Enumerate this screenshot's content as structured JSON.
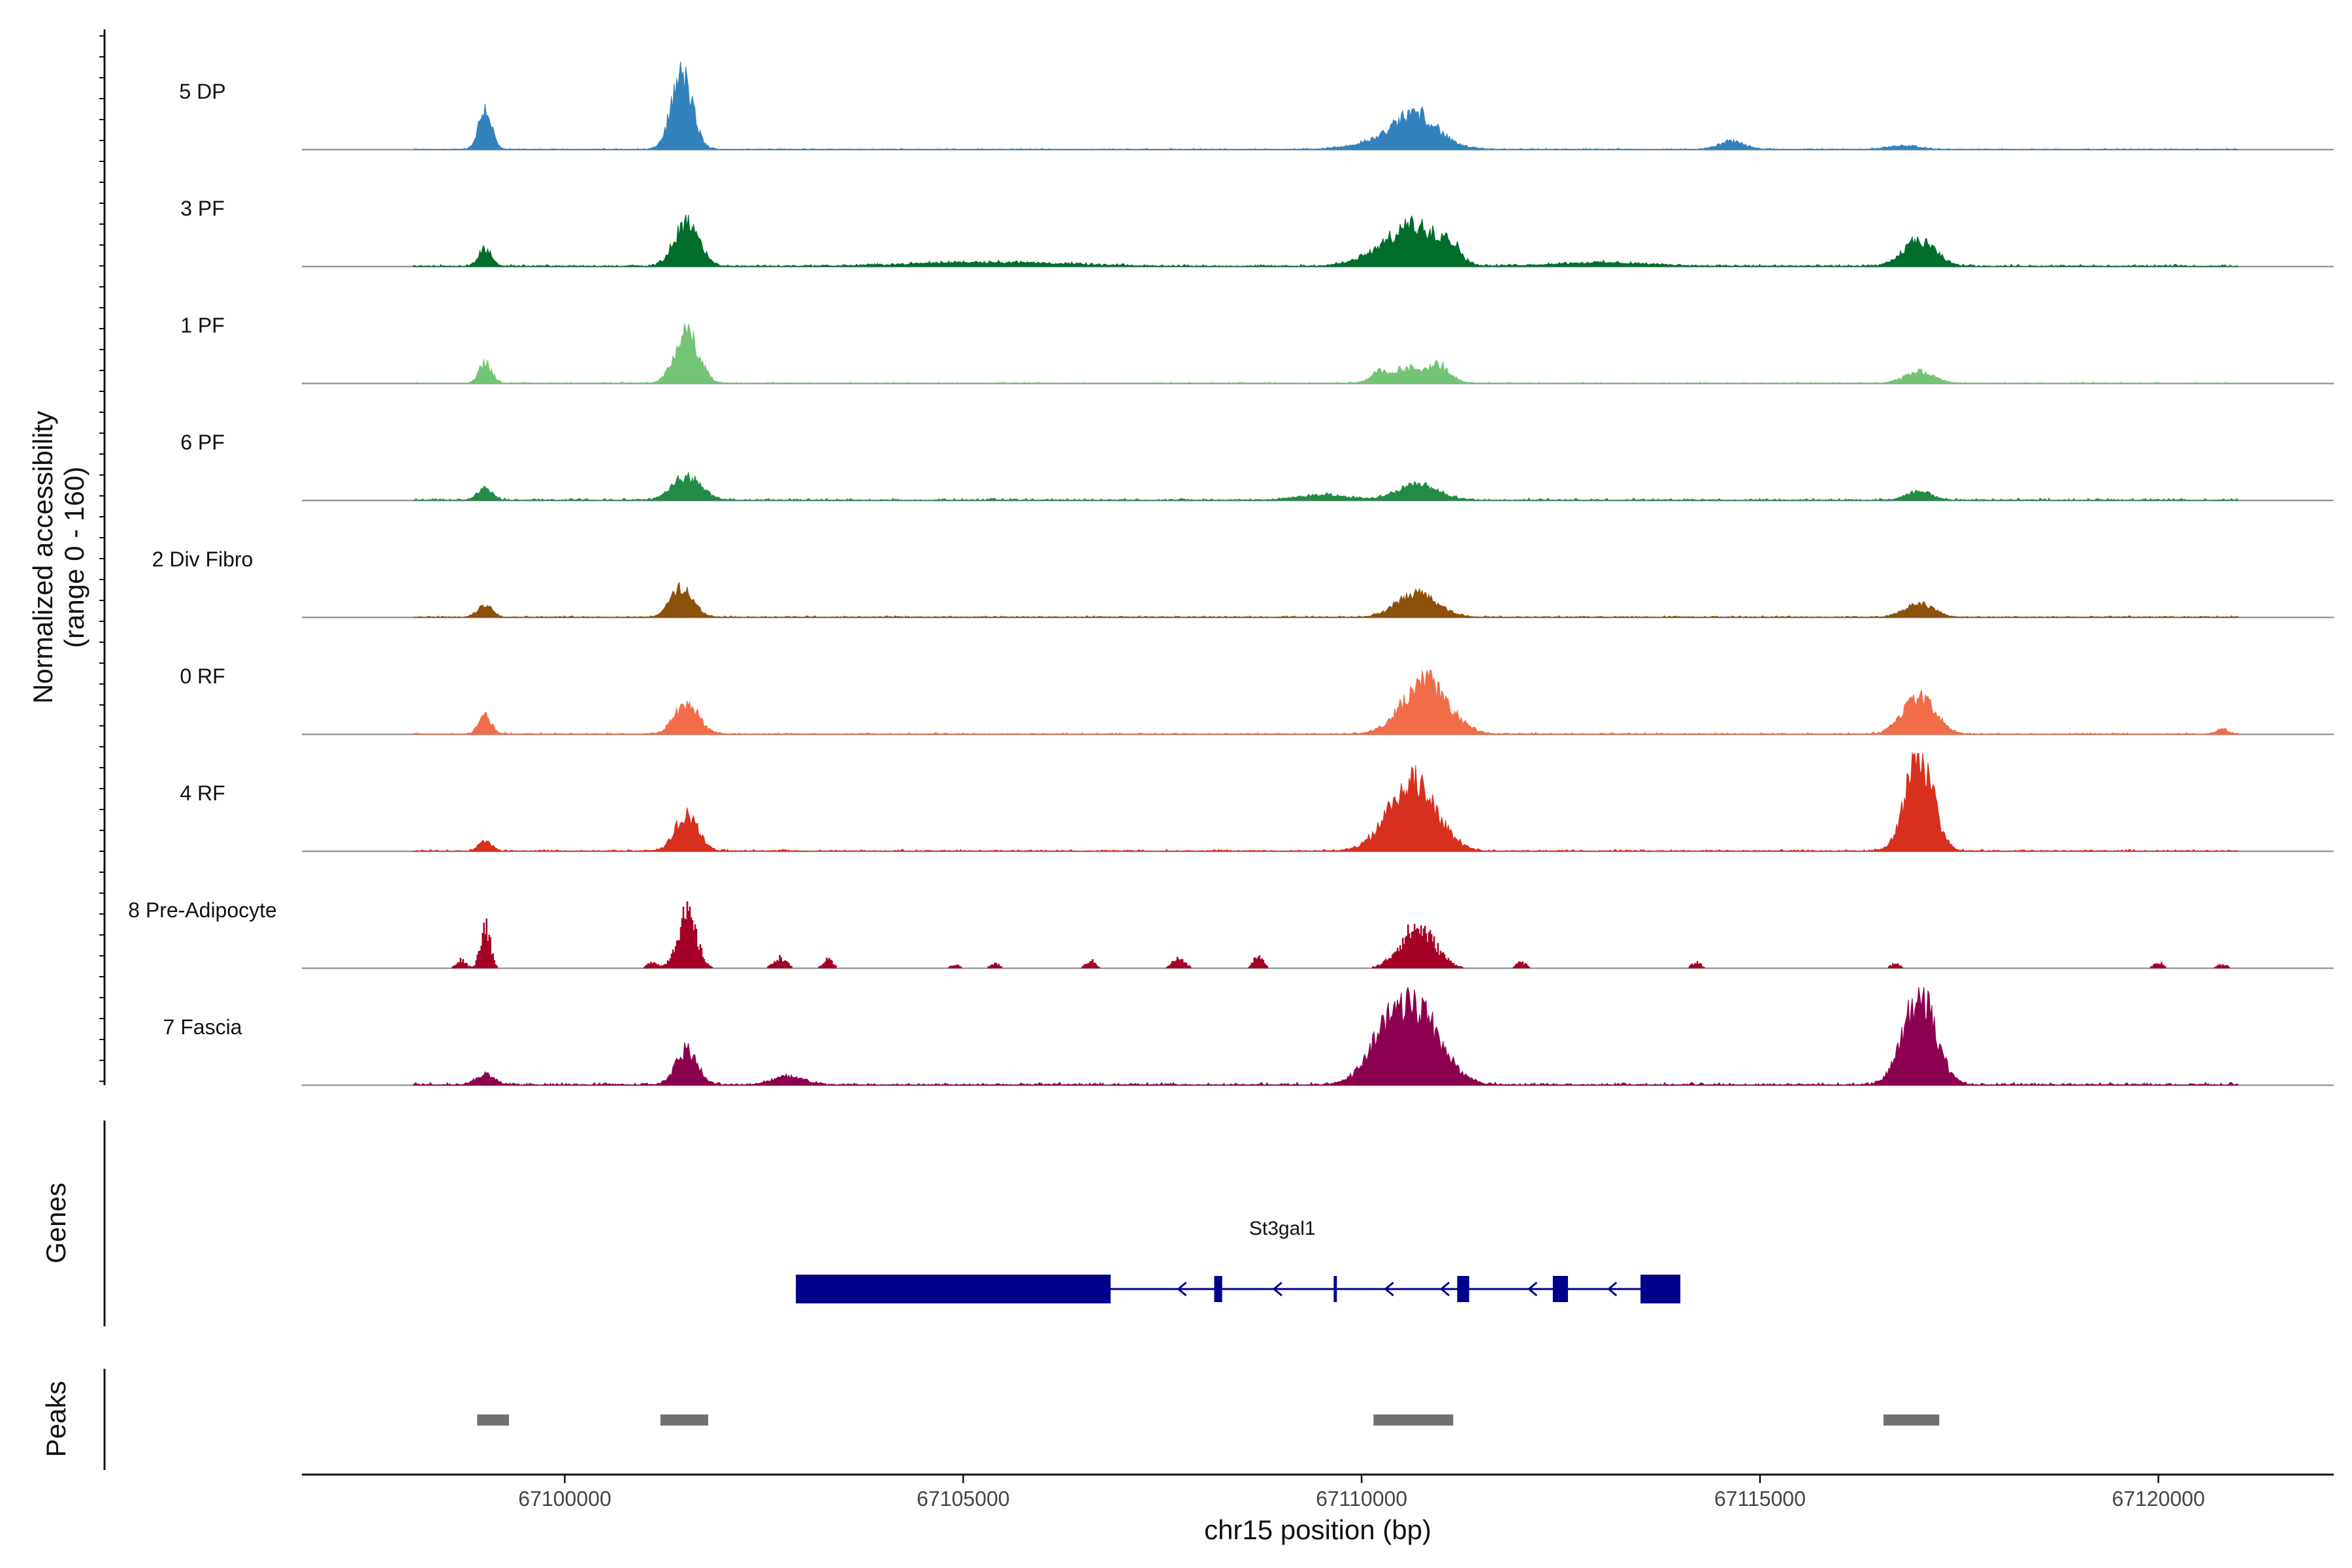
{
  "chart_data": {
    "type": "area",
    "title": "",
    "ylabel_line1": "Normalized accessibility",
    "ylabel_line2": "(range 0 - 160)",
    "xlabel": "chr15 position (bp)",
    "xlim": [
      67096700,
      67122200
    ],
    "ylim": [
      0,
      160
    ],
    "x_ticks": [
      67100000,
      67105000,
      67110000,
      67115000,
      67120000
    ],
    "x_tick_labels": [
      "67100000",
      "67105000",
      "67110000",
      "67115000",
      "67120000"
    ],
    "background_range": [
      67098100,
      67121000
    ],
    "tracks": [
      {
        "name": "5 DP",
        "color": "#3182bd",
        "noise": 2.2,
        "sparse": false,
        "peaks": [
          [
            67099000,
            70,
            80
          ],
          [
            67101470,
            125,
            130
          ],
          [
            67110700,
            42,
            240
          ],
          [
            67110500,
            22,
            420
          ],
          [
            67114650,
            14,
            160
          ],
          [
            67116800,
            6,
            200
          ]
        ]
      },
      {
        "name": "3 PF",
        "color": "#006d2c",
        "noise": 4,
        "sparse": false,
        "peaks": [
          [
            67099000,
            30,
            80
          ],
          [
            67101530,
            76,
            150
          ],
          [
            67110700,
            58,
            270
          ],
          [
            67110300,
            22,
            320
          ],
          [
            67111100,
            30,
            130
          ],
          [
            67117000,
            42,
            200
          ],
          [
            67105300,
            7,
            900
          ],
          [
            67113000,
            6,
            600
          ]
        ]
      },
      {
        "name": "1 PF",
        "color": "#74c476",
        "noise": 2.5,
        "sparse": false,
        "peaks": [
          [
            67099000,
            34,
            80
          ],
          [
            67101530,
            84,
            150
          ],
          [
            67110600,
            26,
            280
          ],
          [
            67110200,
            14,
            70
          ],
          [
            67111000,
            20,
            120
          ],
          [
            67117000,
            20,
            180
          ]
        ]
      },
      {
        "name": "6 PF",
        "color": "#238b45",
        "noise": 4,
        "sparse": false,
        "peaks": [
          [
            67099000,
            20,
            90
          ],
          [
            67101530,
            40,
            180
          ],
          [
            67110700,
            26,
            260
          ],
          [
            67109500,
            9,
            300
          ],
          [
            67117000,
            16,
            150
          ]
        ]
      },
      {
        "name": "2 Div Fibro",
        "color": "#8c510a",
        "noise": 3,
        "sparse": false,
        "peaks": [
          [
            67099000,
            22,
            90
          ],
          [
            67101470,
            50,
            140
          ],
          [
            67110700,
            40,
            250
          ],
          [
            67117000,
            22,
            180
          ]
        ]
      },
      {
        "name": "0 RF",
        "color": "#f16d4a",
        "noise": 3,
        "sparse": false,
        "peaks": [
          [
            67099000,
            30,
            80
          ],
          [
            67101530,
            52,
            150
          ],
          [
            67110800,
            90,
            280
          ],
          [
            67117000,
            62,
            200
          ],
          [
            67120800,
            8,
            80
          ]
        ]
      },
      {
        "name": "4 RF",
        "color": "#d7301f",
        "noise": 3.5,
        "sparse": false,
        "peaks": [
          [
            67099000,
            16,
            80
          ],
          [
            67101530,
            62,
            140
          ],
          [
            67110700,
            102,
            270
          ],
          [
            67110400,
            30,
            250
          ],
          [
            67117000,
            160,
            170
          ]
        ]
      },
      {
        "name": "8 Pre-Adipocyte",
        "color": "#a50026",
        "noise": 0,
        "sparse": true,
        "peaks": [
          [
            67099000,
            92,
            60
          ],
          [
            67101530,
            110,
            120
          ],
          [
            67110700,
            84,
            220
          ],
          [
            67112000,
            14,
            60
          ],
          [
            67098700,
            18,
            60
          ],
          [
            67101100,
            14,
            60
          ],
          [
            67102700,
            22,
            80
          ],
          [
            67103300,
            18,
            60
          ],
          [
            67106600,
            16,
            60
          ],
          [
            67107700,
            20,
            80
          ],
          [
            67108700,
            26,
            60
          ],
          [
            67114200,
            12,
            60
          ],
          [
            67116700,
            10,
            60
          ],
          [
            67120000,
            12,
            60
          ],
          [
            67120800,
            8,
            70
          ],
          [
            67105400,
            10,
            60
          ],
          [
            67104900,
            8,
            60
          ]
        ]
      },
      {
        "name": "7 Fascia",
        "color": "#8c0050",
        "noise": 5,
        "sparse": false,
        "peaks": [
          [
            67099000,
            18,
            110
          ],
          [
            67101530,
            60,
            130
          ],
          [
            67110700,
            120,
            300
          ],
          [
            67110300,
            60,
            250
          ],
          [
            67117000,
            150,
            200
          ],
          [
            67102800,
            14,
            200
          ]
        ]
      }
    ],
    "genes_track_label": "Genes",
    "peaks_track_label": "Peaks",
    "gene": {
      "name": "St3gal1",
      "start": 67102900,
      "end": 67114000,
      "strand": "-",
      "color": "#00008b",
      "exons": [
        [
          67102900,
          67106850
        ],
        [
          67108150,
          67108250
        ],
        [
          67109650,
          67109690
        ],
        [
          67111200,
          67111350
        ],
        [
          67112400,
          67112590
        ],
        [
          67113500,
          67114000
        ]
      ],
      "arrows": [
        67107700,
        67108900,
        67110300,
        67111000,
        67112100,
        67113100
      ]
    },
    "peaks": {
      "color": "#707070",
      "regions": [
        [
          67098900,
          67099300
        ],
        [
          67101200,
          67101800
        ],
        [
          67110150,
          67111150
        ],
        [
          67116550,
          67117250
        ]
      ]
    }
  }
}
